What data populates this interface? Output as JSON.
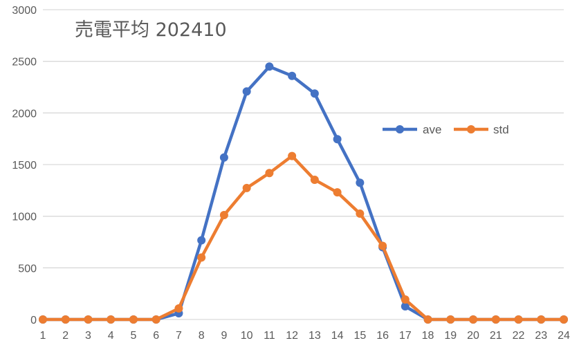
{
  "chart_data": {
    "type": "line",
    "title": "売電平均 202410",
    "xlabel": "",
    "ylabel": "",
    "categories": [
      "1",
      "2",
      "3",
      "4",
      "5",
      "6",
      "7",
      "8",
      "9",
      "10",
      "11",
      "12",
      "13",
      "14",
      "15",
      "16",
      "17",
      "18",
      "19",
      "20",
      "21",
      "22",
      "23",
      "24"
    ],
    "series": [
      {
        "name": "ave",
        "color": "#4472C4",
        "values": [
          0,
          0,
          0,
          0,
          0,
          0,
          60,
          767,
          1569,
          2208,
          2449,
          2359,
          2188,
          1746,
          1324,
          700,
          127,
          0,
          0,
          0,
          0,
          0,
          0,
          0
        ]
      },
      {
        "name": "std",
        "color": "#ED7D31",
        "values": [
          0,
          0,
          0,
          0,
          0,
          0,
          107,
          600,
          1011,
          1273,
          1418,
          1583,
          1353,
          1231,
          1025,
          713,
          193,
          0,
          0,
          0,
          0,
          0,
          0,
          0
        ]
      }
    ],
    "ylim": [
      0,
      3000
    ],
    "yticks": [
      0,
      500,
      1000,
      1500,
      2000,
      2500,
      3000
    ],
    "grid": true,
    "legend_position": "inside-right-upper",
    "markers": true
  }
}
